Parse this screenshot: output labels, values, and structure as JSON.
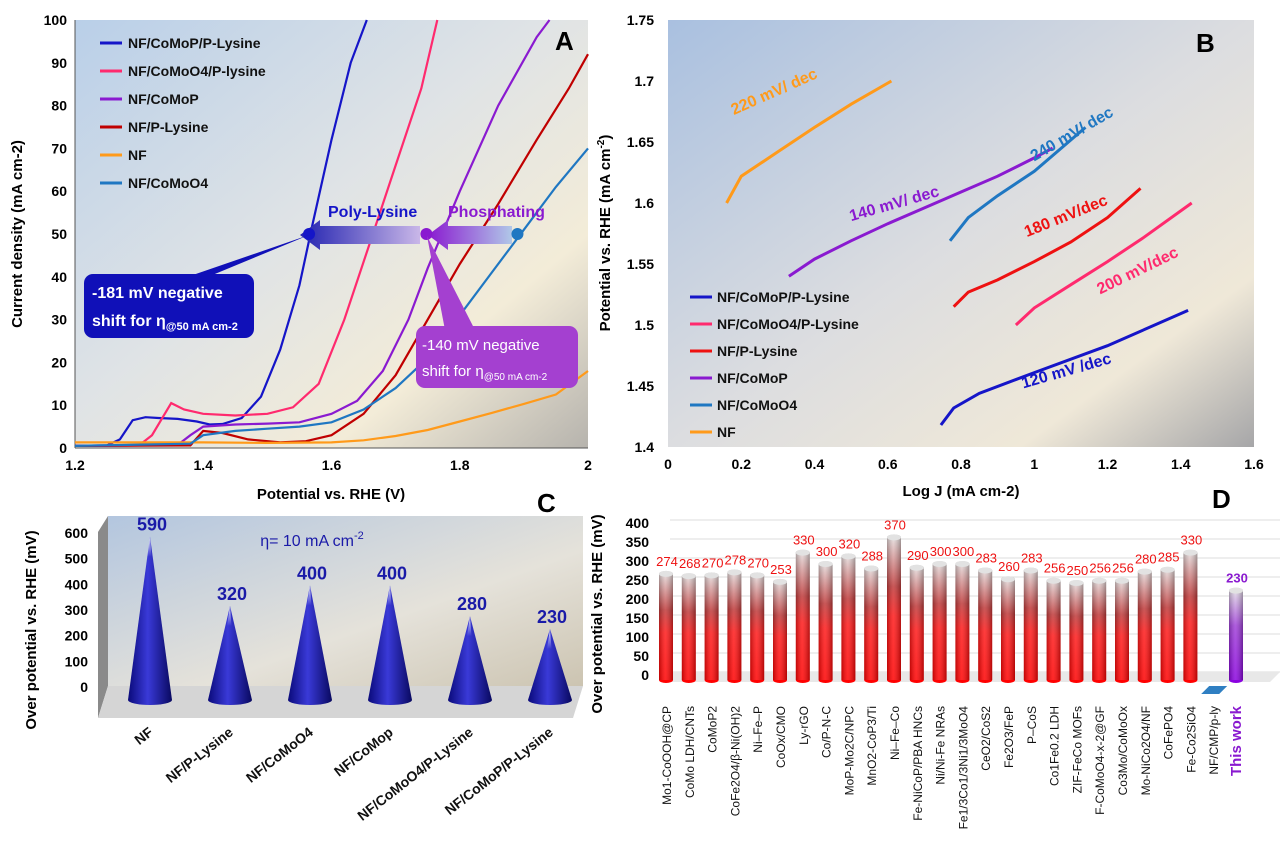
{
  "colors": {
    "cmp_ply": "#1515c8",
    "cmo_ply": "#ff2a6e",
    "ply": "#c00000",
    "cmp": "#8a1ad0",
    "cmo": "#1f77c2",
    "nf": "#ff9a1a",
    "redlabel": "#ee1111",
    "blue_label": "#1a1aa8",
    "purple_work": "#8a1ad0"
  },
  "panels": {
    "A": "A",
    "B": "B",
    "C": "C",
    "D": "D"
  },
  "chart_data": [
    {
      "type": "line",
      "panel": "A",
      "xlabel": "Potential vs. RHE (V)",
      "ylabel": "Current density (mA cm-2)",
      "xlim": [
        1.2,
        2.0
      ],
      "ylim": [
        0,
        100
      ],
      "xticks": [
        "1.2",
        "1.4",
        "1.6",
        "1.8",
        "2"
      ],
      "yticks": [
        "0",
        "10",
        "20",
        "30",
        "40",
        "50",
        "60",
        "70",
        "80",
        "90",
        "100"
      ],
      "legend_position": "top-left",
      "series": [
        {
          "name": "NF/CoMoP/P-Lysine",
          "color": "#1515c8",
          "points": [
            [
              1.2,
              0.5
            ],
            [
              1.25,
              0.6
            ],
            [
              1.27,
              2
            ],
            [
              1.29,
              6.5
            ],
            [
              1.31,
              7.2
            ],
            [
              1.33,
              7
            ],
            [
              1.36,
              6.8
            ],
            [
              1.39,
              6.2
            ],
            [
              1.41,
              5.5
            ],
            [
              1.43,
              5.6
            ],
            [
              1.46,
              7
            ],
            [
              1.49,
              12
            ],
            [
              1.52,
              23
            ],
            [
              1.55,
              38
            ],
            [
              1.57,
              52
            ],
            [
              1.6,
              72
            ],
            [
              1.63,
              90
            ],
            [
              1.655,
              100
            ]
          ]
        },
        {
          "name": "NF/CoMoO4/P-lysine",
          "color": "#ff2a6e",
          "points": [
            [
              1.2,
              0.5
            ],
            [
              1.3,
              0.6
            ],
            [
              1.32,
              3
            ],
            [
              1.35,
              10.5
            ],
            [
              1.37,
              9
            ],
            [
              1.4,
              8
            ],
            [
              1.45,
              7.6
            ],
            [
              1.5,
              8
            ],
            [
              1.54,
              9.5
            ],
            [
              1.58,
              15
            ],
            [
              1.62,
              30
            ],
            [
              1.66,
              48
            ],
            [
              1.7,
              66
            ],
            [
              1.74,
              84
            ],
            [
              1.765,
              100
            ]
          ]
        },
        {
          "name": "NF/CoMoP",
          "color": "#8a1ad0",
          "points": [
            [
              1.2,
              0.5
            ],
            [
              1.36,
              0.7
            ],
            [
              1.38,
              3
            ],
            [
              1.4,
              5
            ],
            [
              1.45,
              5.5
            ],
            [
              1.5,
              5.7
            ],
            [
              1.55,
              6
            ],
            [
              1.6,
              8
            ],
            [
              1.64,
              11
            ],
            [
              1.68,
              18
            ],
            [
              1.72,
              30
            ],
            [
              1.75,
              42
            ],
            [
              1.8,
              60
            ],
            [
              1.86,
              80
            ],
            [
              1.92,
              96
            ],
            [
              1.94,
              100
            ]
          ]
        },
        {
          "name": "NF/P-Lysine",
          "color": "#c00000",
          "points": [
            [
              1.2,
              0.5
            ],
            [
              1.38,
              0.6
            ],
            [
              1.4,
              4
            ],
            [
              1.43,
              3.5
            ],
            [
              1.47,
              2
            ],
            [
              1.52,
              1.3
            ],
            [
              1.56,
              1.6
            ],
            [
              1.6,
              3
            ],
            [
              1.65,
              8
            ],
            [
              1.7,
              17
            ],
            [
              1.75,
              30
            ],
            [
              1.8,
              43
            ],
            [
              1.86,
              57
            ],
            [
              1.92,
              72
            ],
            [
              1.97,
              84
            ],
            [
              2.0,
              92
            ]
          ]
        },
        {
          "name": "NF",
          "color": "#ff9a1a",
          "points": [
            [
              1.2,
              1.3
            ],
            [
              1.3,
              1.3
            ],
            [
              1.4,
              1.3
            ],
            [
              1.5,
              1.2
            ],
            [
              1.6,
              1.3
            ],
            [
              1.65,
              1.8
            ],
            [
              1.7,
              2.8
            ],
            [
              1.75,
              4.2
            ],
            [
              1.8,
              6.2
            ],
            [
              1.85,
              8.2
            ],
            [
              1.9,
              10.3
            ],
            [
              1.95,
              12.5
            ],
            [
              2.0,
              18
            ]
          ]
        },
        {
          "name": "NF/CoMoO4",
          "color": "#1f77c2",
          "points": [
            [
              1.2,
              0.5
            ],
            [
              1.38,
              1
            ],
            [
              1.4,
              3
            ],
            [
              1.45,
              4
            ],
            [
              1.5,
              4.5
            ],
            [
              1.55,
              5
            ],
            [
              1.6,
              6
            ],
            [
              1.65,
              9
            ],
            [
              1.7,
              14
            ],
            [
              1.75,
              21
            ],
            [
              1.8,
              31
            ],
            [
              1.85,
              41
            ],
            [
              1.9,
              51
            ],
            [
              1.95,
              61
            ],
            [
              2.0,
              70
            ]
          ]
        }
      ],
      "markers": [
        {
          "x": 1.565,
          "y": 50,
          "color": "#1515c8"
        },
        {
          "x": 1.748,
          "y": 50,
          "color": "#8a1ad0"
        },
        {
          "x": 1.89,
          "y": 50,
          "color": "#1f77c2"
        }
      ],
      "annotations": {
        "arrow1": "Poly-Lysine",
        "arrow2": "Phosphating",
        "callout1_line1": "-181 mV negative",
        "callout1_line2": "shift for η",
        "callout1_sub": "@50 mA cm-2",
        "callout2_line1": "-140 mV negative",
        "callout2_line2": "shift for η",
        "callout2_sub": "@50 mA cm-2"
      }
    },
    {
      "type": "line",
      "panel": "B",
      "xlabel": "Log J (mA cm-2)",
      "ylabel": "Potential vs. RHE (mA cm",
      "ylabel_sup": "-2",
      "ylabel_end": ")",
      "xlim": [
        0,
        1.6
      ],
      "ylim": [
        1.4,
        1.75
      ],
      "xticks": [
        "0",
        "0.2",
        "0.4",
        "0.6",
        "0.8",
        "1",
        "1.2",
        "1.4",
        "1.6"
      ],
      "yticks": [
        "1.4",
        "1.45",
        "1.5",
        "1.55",
        "1.6",
        "1.65",
        "1.7",
        "1.75"
      ],
      "legend_position": "bottom-left",
      "series": [
        {
          "name": "NF/CoMoP/P-Lysine",
          "color": "#1515c8",
          "points": [
            [
              0.745,
              1.418
            ],
            [
              0.78,
              1.432
            ],
            [
              0.85,
              1.444
            ],
            [
              1.0,
              1.461
            ],
            [
              1.2,
              1.483
            ],
            [
              1.42,
              1.512
            ]
          ]
        },
        {
          "name": "NF/CoMoO4/P-Lysine",
          "color": "#ff2a6e",
          "points": [
            [
              0.95,
              1.5
            ],
            [
              1.0,
              1.514
            ],
            [
              1.1,
              1.533
            ],
            [
              1.2,
              1.552
            ],
            [
              1.3,
              1.572
            ],
            [
              1.43,
              1.6
            ]
          ]
        },
        {
          "name": "NF/P-Lysine",
          "color": "#ee1111",
          "points": [
            [
              0.78,
              1.515
            ],
            [
              0.82,
              1.527
            ],
            [
              0.9,
              1.537
            ],
            [
              1.0,
              1.552
            ],
            [
              1.1,
              1.568
            ],
            [
              1.2,
              1.588
            ],
            [
              1.29,
              1.612
            ]
          ]
        },
        {
          "name": "NF/CoMoP",
          "color": "#8a1ad0",
          "points": [
            [
              0.33,
              1.54
            ],
            [
              0.4,
              1.554
            ],
            [
              0.5,
              1.569
            ],
            [
              0.6,
              1.583
            ],
            [
              0.7,
              1.596
            ],
            [
              0.8,
              1.609
            ],
            [
              0.9,
              1.622
            ],
            [
              1.0,
              1.637
            ],
            [
              1.05,
              1.645
            ]
          ]
        },
        {
          "name": "NF/CoMoO4",
          "color": "#1f77c2",
          "points": [
            [
              0.77,
              1.569
            ],
            [
              0.82,
              1.588
            ],
            [
              0.9,
              1.606
            ],
            [
              1.0,
              1.626
            ],
            [
              1.14,
              1.662
            ]
          ]
        },
        {
          "name": "NF",
          "color": "#ff9a1a",
          "points": [
            [
              0.16,
              1.6
            ],
            [
              0.2,
              1.622
            ],
            [
              0.3,
              1.642
            ],
            [
              0.4,
              1.662
            ],
            [
              0.5,
              1.681
            ],
            [
              0.61,
              1.7
            ]
          ]
        }
      ],
      "slope_labels": [
        {
          "text": "220 mV/ dec",
          "x": 0.18,
          "y": 1.672,
          "angle": -24,
          "color": "#ff9a1a"
        },
        {
          "text": "240 mV/ dec",
          "x": 1.0,
          "y": 1.634,
          "angle": -30,
          "color": "#1f77c2"
        },
        {
          "text": "140 mV/ dec",
          "x": 0.5,
          "y": 1.585,
          "angle": -16,
          "color": "#8a1ad0"
        },
        {
          "text": "180 mV/dec",
          "x": 0.98,
          "y": 1.572,
          "angle": -22,
          "color": "#ee1111"
        },
        {
          "text": "200 mV/dec",
          "x": 1.18,
          "y": 1.525,
          "angle": -26,
          "color": "#ff2a6e"
        },
        {
          "text": "120 mV /dec",
          "x": 0.97,
          "y": 1.448,
          "angle": -16,
          "color": "#1515c8"
        }
      ]
    },
    {
      "type": "bar",
      "panel": "C",
      "ylabel": "Over potential vs. RHE (mV)",
      "ylim": [
        0,
        600
      ],
      "yticks": [
        "0",
        "100",
        "200",
        "300",
        "400",
        "500",
        "600"
      ],
      "condition_label": "η= 10 mA cm",
      "condition_sup": "-2",
      "categories": [
        "NF",
        "NF/P-Lysine",
        "NF/CoMoO4",
        "NF/CoMop",
        "NF/CoMoO4/P-Lysine",
        "NF/CoMoP/P-Lysine"
      ],
      "values": [
        590,
        320,
        400,
        400,
        280,
        230
      ],
      "value_labels": [
        "590",
        "320",
        "400",
        "400",
        "280",
        "230"
      ]
    },
    {
      "type": "bar",
      "panel": "D",
      "ylabel": "Over potential vs. RHE (mV)",
      "ylim": [
        0,
        400
      ],
      "yticks": [
        "0",
        "50",
        "100",
        "150",
        "200",
        "250",
        "300",
        "350",
        "400"
      ],
      "categories": [
        "Mo1-CoOOH@CP",
        "CoMo LDH/CNTs",
        "CoMoP2",
        "CoFe2O4/β-Ni(OH)2",
        "Ni–Fe–P",
        "CoOx/CMO",
        "Ly-rGO",
        "Co/P-N-C",
        "MoP-Mo2C/NPC",
        "MnO2-CoP3/Ti",
        "Ni–Fe–Co",
        "Fe-NiCoP/PBA HNCs",
        "Ni/Ni-Fe NRAs",
        "Fe1/3Co1/3Ni1/3MoO4",
        "CeO2/CoS2",
        "Fe2O3/FeP",
        "P–CoS",
        "Co1Fe0.2 LDH",
        "ZIF-FeCo MOFs",
        "F-CoMoO4-x-2@GF",
        "Co3Mo/CoMoOx",
        "Mo-NiCo2O4/NF",
        "CoFePO4",
        "Fe-Co2SiO4",
        "NF/CMP/p-ly",
        "This work"
      ],
      "values": [
        274,
        268,
        270,
        278,
        270,
        253,
        330,
        300,
        320,
        288,
        370,
        290,
        300,
        300,
        283,
        260,
        283,
        256,
        250,
        256,
        256,
        280,
        285,
        330,
        0,
        230
      ],
      "value_labels": [
        "274",
        "268",
        "270",
        "278",
        "270",
        "253",
        "330",
        "300",
        "320",
        "288",
        "370",
        "290",
        "300",
        "300",
        "283",
        "260",
        "283",
        "256",
        "250",
        "256",
        "256",
        "280",
        "285",
        "330",
        "",
        "230"
      ]
    }
  ]
}
